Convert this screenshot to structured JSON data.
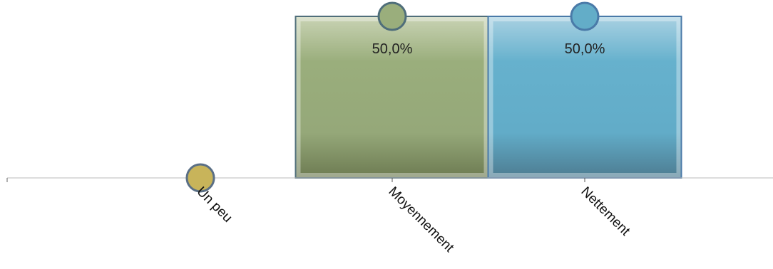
{
  "chart_data": {
    "type": "bar",
    "categories": [
      "Un peu",
      "Moyennement",
      "Nettement"
    ],
    "values": [
      0,
      50,
      50
    ],
    "value_labels": [
      "",
      "50,0%",
      "50,0%"
    ],
    "ylim": [
      0,
      50
    ],
    "grid": false,
    "legend": "none",
    "colors": [
      "#c8b45a",
      "#9aae7c",
      "#63adc8"
    ],
    "outline_colors": [
      "#5a6f86",
      "#4f6e7a",
      "#4a7aa8"
    ]
  }
}
